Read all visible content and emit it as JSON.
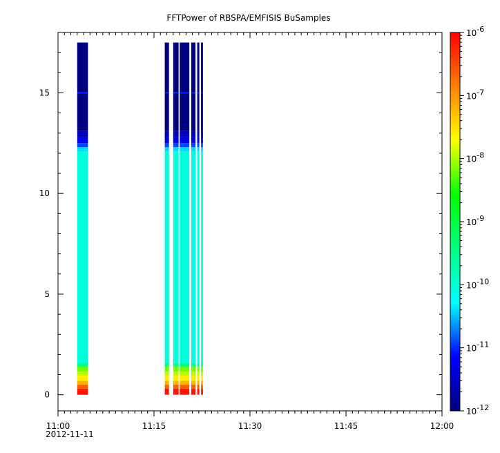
{
  "chart_data": {
    "type": "heatmap",
    "title": "FFTPower of RBSPA/EMFISIS  BuSamples",
    "xlabel": "",
    "ylabel": "",
    "x_range": [
      "11:00",
      "12:00"
    ],
    "x_ticks": [
      "11:00",
      "11:15",
      "11:30",
      "11:45",
      "12:00"
    ],
    "x_date_label": "2012-11-11",
    "y_range": [
      -0.8,
      18.0
    ],
    "y_ticks": [
      0,
      5,
      10,
      15
    ],
    "colorbar": {
      "scale": "log",
      "range": [
        1e-12,
        1e-06
      ],
      "ticks": [
        {
          "base": "10",
          "exp": "-6"
        },
        {
          "base": "10",
          "exp": "-7"
        },
        {
          "base": "10",
          "exp": "-8"
        },
        {
          "base": "10",
          "exp": "-9"
        },
        {
          "base": "10",
          "exp": "-10"
        },
        {
          "base": "10",
          "exp": "-11"
        },
        {
          "base": "10",
          "exp": "-12"
        }
      ],
      "colormap": [
        "#000080",
        "#0000ff",
        "#00ffff",
        "#00ff80",
        "#00ff00",
        "#ffff00",
        "#ff8000",
        "#ff0000"
      ]
    },
    "y_bands": [
      {
        "y0": 0.0,
        "y1": 0.3,
        "log_power": -6.15
      },
      {
        "y0": 0.3,
        "y1": 0.5,
        "log_power": -6.6
      },
      {
        "y0": 0.5,
        "y1": 0.7,
        "log_power": -7.2
      },
      {
        "y0": 0.7,
        "y1": 0.95,
        "log_power": -7.6
      },
      {
        "y0": 0.95,
        "y1": 1.15,
        "log_power": -7.95
      },
      {
        "y0": 1.15,
        "y1": 1.4,
        "log_power": -8.2
      },
      {
        "y0": 1.4,
        "y1": 1.55,
        "log_power": -9.3
      },
      {
        "y0": 1.55,
        "y1": 12.1,
        "log_power": -10.05
      },
      {
        "y0": 12.1,
        "y1": 12.3,
        "log_power": -10.4
      },
      {
        "y0": 12.3,
        "y1": 12.5,
        "log_power": -10.9
      },
      {
        "y0": 12.5,
        "y1": 12.8,
        "log_power": -11.3
      },
      {
        "y0": 12.8,
        "y1": 13.1,
        "log_power": -11.6
      },
      {
        "y0": 13.1,
        "y1": 17.5,
        "log_power": -12.0
      }
    ],
    "line_15": {
      "y": 15.0,
      "log_power": -11.0
    },
    "time_segments": [
      {
        "start": 11.05,
        "end": 11.078
      },
      {
        "start": 11.278,
        "end": 11.289
      },
      {
        "start": 11.3,
        "end": 11.314
      },
      {
        "start": 11.317,
        "end": 11.342
      },
      {
        "start": 11.347,
        "end": 11.358
      },
      {
        "start": 11.3625,
        "end": 11.368
      },
      {
        "start": 11.3725,
        "end": 11.3775
      }
    ]
  }
}
